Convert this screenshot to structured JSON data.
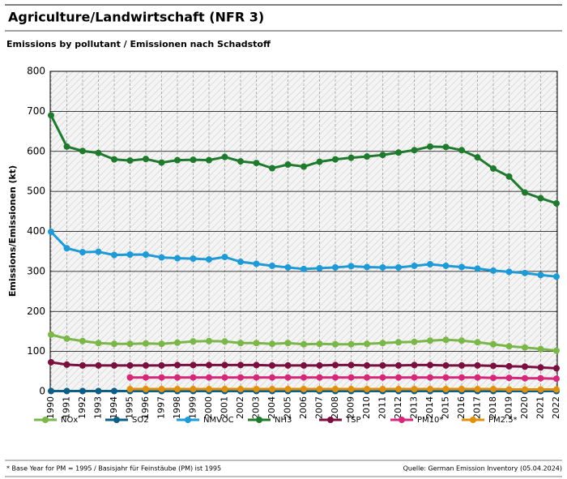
{
  "chart_data": {
    "type": "line",
    "title": "Agriculture/Landwirtschaft (NFR 3)",
    "subtitle": "Emissions by pollutant / Emissionen nach Schadstoff",
    "y_label": "Emissions/Emissionen (kt)",
    "footnote": "* Base Year for PM = 1995 / Basisjahr für Feinstäube (PM) ist 1995",
    "source": "Quelle: German Emission Inventory (05.04.2024)",
    "categories": [
      "1990",
      "1991",
      "1992",
      "1993",
      "1994",
      "1995",
      "1996",
      "1997",
      "1998",
      "1999",
      "2000",
      "2001",
      "2002",
      "2003",
      "2004",
      "2005",
      "2006",
      "2007",
      "2008",
      "2009",
      "2010",
      "2011",
      "2012",
      "2013",
      "2014",
      "2015",
      "2016",
      "2017",
      "2018",
      "2019",
      "2020",
      "2021",
      "2022"
    ],
    "ylim": [
      0,
      800
    ],
    "yticks": [
      0,
      100,
      200,
      300,
      400,
      500,
      600,
      700,
      800
    ],
    "grid": true,
    "series": [
      {
        "name": "NOx",
        "color": "#7ab648",
        "values": [
          142,
          132,
          126,
          121,
          119,
          119,
          120,
          119,
          122,
          125,
          126,
          125,
          121,
          121,
          119,
          121,
          118,
          119,
          118,
          118,
          119,
          121,
          123,
          124,
          127,
          129,
          127,
          123,
          118,
          113,
          110,
          106,
          102
        ]
      },
      {
        "name": "SO2",
        "color": "#0e5e86",
        "values": [
          1,
          1,
          1,
          1,
          1,
          1,
          1,
          1,
          1,
          1,
          1,
          1,
          1,
          1,
          1,
          1,
          1,
          1,
          1,
          1,
          1,
          1,
          1,
          1,
          1,
          1,
          1,
          1,
          1,
          1,
          1,
          1,
          1
        ]
      },
      {
        "name": "NMVOC",
        "color": "#1e9ad6",
        "values": [
          399,
          358,
          348,
          349,
          341,
          342,
          342,
          335,
          333,
          332,
          330,
          336,
          324,
          319,
          314,
          310,
          306,
          308,
          310,
          313,
          311,
          310,
          310,
          314,
          318,
          314,
          311,
          307,
          302,
          299,
          296,
          291,
          287
        ]
      },
      {
        "name": "NH3",
        "color": "#1f7a2d",
        "values": [
          690,
          612,
          601,
          596,
          580,
          577,
          581,
          572,
          578,
          579,
          578,
          586,
          575,
          571,
          558,
          567,
          562,
          574,
          580,
          584,
          587,
          591,
          597,
          603,
          612,
          611,
          603,
          585,
          557,
          537,
          497,
          483,
          470
        ]
      },
      {
        "name": "TSP",
        "color": "#7a0e3e",
        "values": [
          73,
          67,
          65,
          65,
          65,
          65,
          65,
          65,
          66,
          66,
          66,
          66,
          66,
          66,
          65,
          65,
          65,
          65,
          66,
          66,
          65,
          65,
          65,
          66,
          66,
          65,
          65,
          65,
          64,
          63,
          62,
          60,
          58
        ]
      },
      {
        "name": "PM10*",
        "color": "#d6287a",
        "values": [
          null,
          null,
          null,
          null,
          null,
          35,
          35,
          35,
          35,
          35,
          35,
          35,
          35,
          35,
          35,
          35,
          35,
          35,
          35,
          35,
          35,
          35,
          35,
          35,
          35,
          35,
          35,
          35,
          34,
          34,
          33,
          33,
          32
        ]
      },
      {
        "name": "PM2.5*",
        "color": "#e0900a",
        "values": [
          null,
          null,
          null,
          null,
          null,
          6,
          6,
          6,
          6,
          6,
          6,
          6,
          6,
          6,
          6,
          6,
          6,
          6,
          6,
          6,
          6,
          6,
          6,
          6,
          6,
          6,
          6,
          6,
          6,
          5,
          5,
          5,
          5
        ]
      }
    ]
  }
}
